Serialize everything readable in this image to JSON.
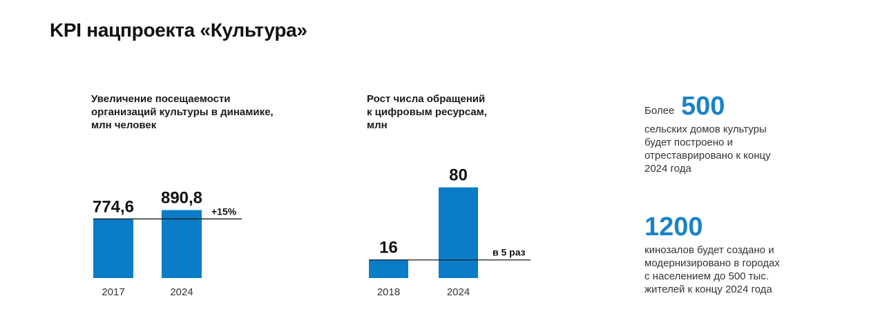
{
  "header": {
    "title": "KPI нацпроекта «Культура»"
  },
  "colors": {
    "bar": "#0b7dc8",
    "accent_text": "#1a82c8",
    "line": "#1a1a1a"
  },
  "chart_data": [
    {
      "type": "bar",
      "title_lines": [
        "Увеличение посещаемости",
        "организаций культуры в динамике,",
        "млн человек"
      ],
      "categories": [
        "2017",
        "2024"
      ],
      "values": [
        774.6,
        890.8
      ],
      "value_labels": [
        "774,6",
        "890,8"
      ],
      "annotation": "+15%"
    },
    {
      "type": "bar",
      "title_lines": [
        "Рост числа обращений",
        "к цифровым ресурсам,",
        "млн"
      ],
      "categories": [
        "2018",
        "2024"
      ],
      "values": [
        16,
        80
      ],
      "value_labels": [
        "16",
        "80"
      ],
      "annotation": "в 5 раз"
    }
  ],
  "kpis": [
    {
      "prefix": "Более",
      "number": "500",
      "lines": [
        "сельских домов культуры",
        "будет построено и",
        "отреставрировано к концу",
        "2024 года"
      ]
    },
    {
      "number": "1200",
      "lines": [
        "кинозалов будет создано и",
        "модернизировано в городах",
        "с населением до 500 тыс.",
        "жителей к концу 2024 года"
      ]
    }
  ]
}
